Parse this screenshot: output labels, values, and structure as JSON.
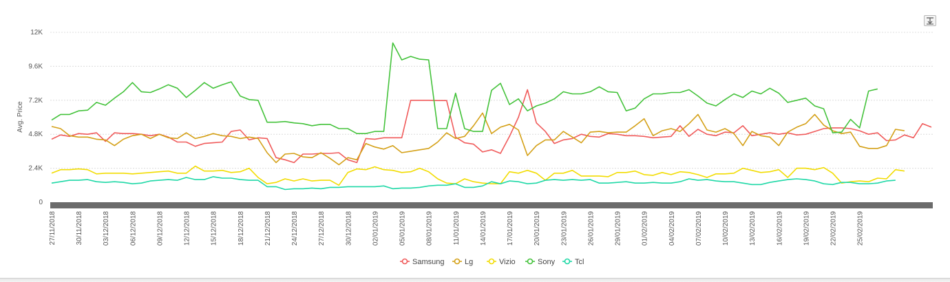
{
  "toolbar": {
    "export_icon": "export-menu-icon"
  },
  "colors": {
    "Samsung": "#f05a5a",
    "Lg": "#d4a017",
    "Vizio": "#f2dc00",
    "Sony": "#43c23a",
    "Tcl": "#1ed8a6",
    "grid": "#dcdcdc",
    "navigator": "#6b6b6b"
  },
  "chart_data": {
    "type": "line",
    "ylabel": "Avg. Price",
    "ylim": [
      0,
      12000
    ],
    "y_ticks": [
      0,
      2400,
      4800,
      7200,
      9600,
      12000
    ],
    "y_tick_labels": [
      "0",
      "2.4K",
      "4.8K",
      "7.2K",
      "9.6K",
      "12K"
    ],
    "x_start": "27/11/2018",
    "x_tick_labels": [
      "27/11/2018",
      "30/11/2018",
      "03/12/2018",
      "06/12/2018",
      "09/12/2018",
      "12/12/2018",
      "15/12/2018",
      "18/12/2018",
      "21/12/2018",
      "24/12/2018",
      "27/12/2018",
      "30/12/2018",
      "02/01/2019",
      "05/01/2019",
      "08/01/2019",
      "11/01/2019",
      "14/01/2019",
      "17/01/2019",
      "20/01/2019",
      "23/01/2019",
      "26/01/2019",
      "29/01/2019",
      "01/02/2019",
      "04/02/2019",
      "07/02/2019",
      "10/02/2019",
      "13/02/2019",
      "16/02/2019",
      "19/02/2019",
      "22/02/2019",
      "25/02/2019"
    ],
    "legend": {
      "position": "bottom-center",
      "items": [
        "Samsung",
        "Lg",
        "Vizio",
        "Sony",
        "Tcl"
      ]
    },
    "grid": true,
    "series": [
      {
        "name": "Samsung",
        "values": [
          4450,
          4750,
          4650,
          4850,
          4800,
          4900,
          4300,
          4900,
          4850,
          4850,
          4800,
          4700,
          4800,
          4600,
          4250,
          4250,
          3950,
          4150,
          4200,
          4250,
          5000,
          5100,
          4400,
          4550,
          4500,
          3150,
          3000,
          2800,
          3400,
          3400,
          3450,
          3450,
          3500,
          3000,
          2800,
          4500,
          4450,
          4550,
          4550,
          4550,
          7200,
          7200,
          7200,
          7180,
          7180,
          4600,
          4200,
          4100,
          3550,
          3700,
          3450,
          4650,
          6000,
          7950,
          5600,
          5000,
          4150,
          4400,
          4500,
          4800,
          4650,
          4600,
          4850,
          4800,
          4700,
          4700,
          4650,
          4550,
          4600,
          4650,
          5400,
          4650,
          5150,
          4800,
          4700,
          4950,
          4900,
          5400,
          4700,
          4800,
          4900,
          4800,
          4900,
          4750,
          4800,
          5000,
          5200,
          5250,
          5250,
          5200,
          5050,
          4800,
          4900,
          4350,
          4400,
          4750,
          4550,
          5550,
          5300
        ]
      },
      {
        "name": "Lg",
        "values": [
          5350,
          5200,
          4700,
          4600,
          4600,
          4450,
          4400,
          4000,
          4450,
          4700,
          4800,
          4500,
          4800,
          4550,
          4500,
          4900,
          4500,
          4650,
          4850,
          4700,
          4650,
          4500,
          4600,
          4500,
          3500,
          2800,
          3400,
          3450,
          3200,
          3150,
          3500,
          3100,
          2650,
          3150,
          3000,
          4150,
          3900,
          3750,
          4000,
          3500,
          3600,
          3700,
          3800,
          4250,
          4900,
          4500,
          4650,
          5400,
          6300,
          4850,
          5300,
          5500,
          5100,
          3300,
          4000,
          4400,
          4400,
          5000,
          4600,
          4200,
          4950,
          5000,
          4900,
          4950,
          4950,
          5400,
          5900,
          4700,
          5050,
          5200,
          5000,
          5550,
          6200,
          5100,
          4950,
          5200,
          4850,
          4000,
          5000,
          4700,
          4600,
          4000,
          4950,
          5300,
          5550,
          6200,
          5450,
          5050,
          4850,
          4950,
          3950,
          3800,
          3800,
          4000,
          5150,
          5050
        ]
      },
      {
        "name": "Vizio",
        "values": [
          2050,
          2300,
          2300,
          2350,
          2300,
          2000,
          2050,
          2050,
          2050,
          2000,
          2050,
          2100,
          2150,
          2200,
          2050,
          2050,
          2550,
          2200,
          2200,
          2250,
          2100,
          2150,
          2400,
          1750,
          1300,
          1400,
          1650,
          1500,
          1650,
          1500,
          1550,
          1550,
          1200,
          2100,
          2350,
          2300,
          2500,
          2300,
          2250,
          2100,
          2150,
          2400,
          2150,
          1650,
          1350,
          1300,
          1650,
          1450,
          1350,
          1300,
          1300,
          2150,
          2050,
          2250,
          2050,
          1550,
          2050,
          2050,
          2250,
          1850,
          1850,
          1850,
          1800,
          2100,
          2100,
          2200,
          1950,
          1900,
          2100,
          1950,
          2150,
          2100,
          1950,
          1750,
          2000,
          2000,
          2050,
          2400,
          2250,
          2100,
          2150,
          2300,
          1750,
          2400,
          2400,
          2300,
          2450,
          2050,
          1350,
          1450,
          1500,
          1450,
          1700,
          1650,
          2300,
          2200
        ]
      },
      {
        "name": "Sony",
        "values": [
          5800,
          6200,
          6200,
          6450,
          6500,
          7050,
          6850,
          7350,
          7800,
          8450,
          7800,
          7750,
          8000,
          8300,
          8050,
          7400,
          7900,
          8450,
          8050,
          8300,
          8500,
          7500,
          7250,
          7200,
          5650,
          5650,
          5700,
          5600,
          5550,
          5400,
          5500,
          5500,
          5200,
          5200,
          4850,
          4850,
          5000,
          5000,
          11250,
          10050,
          10300,
          10100,
          10050,
          5200,
          5200,
          7700,
          5200,
          5000,
          5000,
          7900,
          8400,
          6900,
          7300,
          6450,
          6800,
          7000,
          7300,
          7800,
          7650,
          7650,
          7800,
          8150,
          7800,
          7750,
          6450,
          6650,
          7300,
          7650,
          7650,
          7750,
          7750,
          7950,
          7500,
          7000,
          6800,
          7250,
          7650,
          7400,
          7850,
          7650,
          8050,
          7700,
          7050,
          7200,
          7350,
          6800,
          6600,
          4900,
          4950,
          5850,
          5250,
          7850,
          8000
        ]
      },
      {
        "name": "Tcl",
        "values": [
          1350,
          1450,
          1550,
          1550,
          1600,
          1450,
          1400,
          1450,
          1400,
          1300,
          1350,
          1500,
          1550,
          1600,
          1550,
          1750,
          1600,
          1600,
          1800,
          1700,
          1700,
          1600,
          1550,
          1550,
          1100,
          1100,
          900,
          950,
          950,
          1000,
          950,
          1050,
          1050,
          1100,
          1100,
          1100,
          1100,
          1150,
          950,
          1000,
          1000,
          1050,
          1150,
          1200,
          1200,
          1300,
          1050,
          1050,
          1150,
          1450,
          1300,
          1500,
          1450,
          1300,
          1350,
          1550,
          1600,
          1550,
          1600,
          1550,
          1600,
          1350,
          1350,
          1400,
          1450,
          1350,
          1350,
          1400,
          1350,
          1350,
          1450,
          1650,
          1550,
          1600,
          1500,
          1450,
          1450,
          1350,
          1250,
          1250,
          1400,
          1500,
          1600,
          1650,
          1600,
          1500,
          1300,
          1250,
          1400,
          1400,
          1300,
          1300,
          1350,
          1500,
          1550
        ]
      }
    ]
  }
}
